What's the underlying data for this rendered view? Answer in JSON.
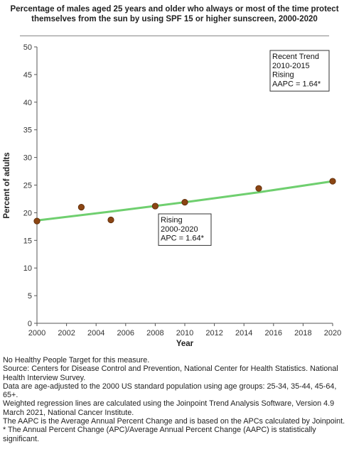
{
  "chart_data": {
    "type": "scatter",
    "title": "Percentage of males aged 25 years and older who always or most of the time protect themselves from the sun by using SPF 15 or higher sunscreen, 2000-2020",
    "xlabel": "Year",
    "ylabel": "Percent of adults",
    "xlim": [
      2000,
      2020
    ],
    "ylim": [
      0,
      50
    ],
    "x_ticks": [
      "2000",
      "2002",
      "2004",
      "2006",
      "2008",
      "2010",
      "2012",
      "2014",
      "2016",
      "2018",
      "2020"
    ],
    "y_ticks": [
      "0",
      "5",
      "10",
      "15",
      "20",
      "25",
      "30",
      "35",
      "40",
      "45",
      "50"
    ],
    "grid": false,
    "series": [
      {
        "kind": "observed",
        "color": "#8b4513",
        "points": [
          {
            "x": 2000,
            "y": 18.5
          },
          {
            "x": 2003,
            "y": 21.0
          },
          {
            "x": 2005,
            "y": 18.7
          },
          {
            "x": 2008,
            "y": 21.2
          },
          {
            "x": 2010,
            "y": 21.9
          },
          {
            "x": 2015,
            "y": 24.4
          },
          {
            "x": 2020,
            "y": 25.7
          }
        ]
      },
      {
        "kind": "trend",
        "color": "#6fcf6f",
        "points": [
          {
            "x": 2000,
            "y": 18.6
          },
          {
            "x": 2005,
            "y": 20.2
          },
          {
            "x": 2010,
            "y": 21.9
          },
          {
            "x": 2015,
            "y": 23.7
          },
          {
            "x": 2020,
            "y": 25.7
          }
        ]
      }
    ],
    "annotations": [
      {
        "id": "recent",
        "lines": [
          "Recent Trend",
          "2010-2015",
          "Rising",
          "AAPC =  1.64*"
        ],
        "position": "top-right"
      },
      {
        "id": "overall",
        "lines": [
          "Rising",
          "2000-2020",
          "APC =  1.64*"
        ],
        "position": "center"
      }
    ]
  },
  "footnotes": [
    "No Healthy People Target for this measure.",
    "Source: Centers for Disease Control and Prevention, National Center for Health Statistics. National Health Interview Survey.",
    "Data are age-adjusted to the 2000 US standard population using age groups: 25-34, 35-44, 45-64, 65+.",
    "Weighted regression lines are calculated using the Joinpoint Trend Analysis Software, Version 4.9 March 2021, National Cancer Institute.",
    "The AAPC is the Average Annual Percent Change and is based on the APCs calculated by Joinpoint.",
    "* The Annual Percent Change (APC)/Average Annual Percent Change (AAPC) is statistically significant."
  ]
}
